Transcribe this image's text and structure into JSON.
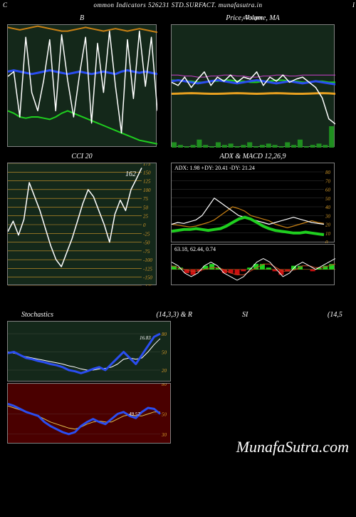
{
  "header": {
    "left": "C",
    "center": "ommon  Indicators 526231 STD.SURFACT. munafasutra.in",
    "right": "I"
  },
  "watermark": "MunafaSutra.com",
  "panels": {
    "bollinger": {
      "title": "B",
      "bg": "#14281a",
      "grid_color": "#3a4a3a",
      "series": {
        "price": {
          "color": "#ffffff",
          "width": 1.5,
          "values": [
            58,
            62,
            25,
            90,
            45,
            30,
            55,
            88,
            30,
            92,
            55,
            25,
            60,
            90,
            20,
            85,
            45,
            95,
            50,
            12,
            88,
            40,
            95,
            50,
            90,
            30
          ]
        },
        "upper": {
          "color": "#1fcf1f",
          "width": 2,
          "values": [
            30,
            28,
            25,
            24,
            25,
            25,
            24,
            23,
            25,
            28,
            30,
            28,
            26,
            24,
            22,
            20,
            18,
            16,
            14,
            12,
            10,
            8,
            6,
            5,
            4,
            3
          ]
        },
        "mid": {
          "color": "#2a4df0",
          "width": 3,
          "values": [
            62,
            63,
            62,
            61,
            60,
            61,
            62,
            63,
            62,
            61,
            60,
            61,
            62,
            61,
            60,
            61,
            62,
            61,
            60,
            62,
            63,
            62,
            61,
            62,
            61,
            60
          ]
        },
        "lower": {
          "color": "#c88014",
          "width": 2,
          "values": [
            98,
            97,
            96,
            97,
            98,
            99,
            98,
            97,
            96,
            95,
            95,
            96,
            97,
            98,
            97,
            96,
            95,
            96,
            97,
            96,
            95,
            96,
            97,
            96,
            95,
            94
          ]
        }
      }
    },
    "price_ma": {
      "title": "Price,  Volume,  MA",
      "sub": "all super",
      "bg": "#14281a",
      "grid_color": "#3a4a3a",
      "series": {
        "orange": {
          "color": "#e8a020",
          "width": 3,
          "values": [
            34,
            34.2,
            34.4,
            34.6,
            34.4,
            34.2,
            34,
            34,
            34.2,
            34.4,
            34.6,
            34.4,
            34.2,
            34,
            34.2,
            34.4,
            34.6,
            34.4,
            34.2,
            34,
            34,
            34.2,
            34.4,
            34.6,
            34.4,
            34
          ]
        },
        "price": {
          "color": "#ffffff",
          "width": 1.5,
          "values": [
            45,
            42,
            50,
            40,
            48,
            55,
            42,
            50,
            46,
            52,
            45,
            50,
            48,
            55,
            42,
            50,
            46,
            52,
            45,
            48,
            50,
            45,
            40,
            30,
            10,
            5
          ]
        },
        "ma1": {
          "color": "#2a4df0",
          "width": 3,
          "values": [
            46,
            47,
            46,
            45,
            44,
            45,
            46,
            47,
            46,
            45,
            44,
            45,
            46,
            47,
            46,
            45,
            44,
            45,
            46,
            45,
            44,
            45,
            46,
            45,
            44,
            43
          ]
        },
        "ma2": {
          "color": "#cc40cc",
          "width": 1,
          "values": [
            52,
            52,
            51,
            51,
            50,
            50,
            51,
            51,
            52,
            52,
            51,
            51,
            50,
            50,
            51,
            51,
            52,
            52,
            51,
            51,
            52,
            52,
            52,
            52,
            52,
            52
          ]
        },
        "green": {
          "color": "#1dd31d",
          "width": 2,
          "values": [
            47,
            47,
            46,
            46,
            45,
            45,
            46,
            46,
            47,
            47,
            46,
            46,
            45,
            45,
            46,
            46,
            47,
            47,
            46,
            46,
            45,
            45,
            46,
            46,
            45,
            45
          ]
        }
      },
      "volume_bars": {
        "color": "#1f8f1f",
        "values": [
          2,
          1,
          0.5,
          1,
          3,
          1,
          0.5,
          2,
          1,
          1.5,
          0.5,
          1,
          2,
          0.5,
          1,
          1.5,
          1,
          0.5,
          2,
          1,
          3,
          0.5,
          1,
          1.5,
          1,
          8
        ]
      }
    },
    "cci": {
      "title": "CCI 20",
      "bg": "#14281a",
      "grid_color": "#d49a2a",
      "yrange": [
        -175,
        175
      ],
      "ystep": 25,
      "callout": "162",
      "series": {
        "cci": {
          "color": "#ffffff",
          "width": 1.5,
          "values": [
            -20,
            10,
            -30,
            15,
            120,
            80,
            40,
            -10,
            -60,
            -100,
            -120,
            -80,
            -40,
            10,
            60,
            100,
            80,
            40,
            0,
            -50,
            30,
            70,
            40,
            100,
            130,
            162
          ]
        }
      }
    },
    "adx": {
      "title": "ADX   & MACD 12,26,9",
      "bg": "#000000",
      "grid_color": "#3a3a3a",
      "text": "ADX: 1.98   +DY: 20.41 -DY: 21.24",
      "yrange": [
        0,
        80
      ],
      "ystep": 10,
      "series": {
        "plus": {
          "color": "#ffffff",
          "width": 1.2,
          "values": [
            20,
            22,
            21,
            23,
            25,
            30,
            40,
            50,
            45,
            40,
            35,
            30,
            28,
            26,
            24,
            22,
            20,
            22,
            24,
            26,
            28,
            26,
            24,
            22,
            21,
            20
          ]
        },
        "minus": {
          "color": "#c88014",
          "width": 1.2,
          "values": [
            20,
            19,
            18,
            17,
            18,
            20,
            22,
            25,
            30,
            35,
            40,
            38,
            35,
            30,
            28,
            26,
            24,
            20,
            18,
            16,
            18,
            20,
            22,
            24,
            22,
            21
          ]
        },
        "adx": {
          "color": "#1fcf1f",
          "width": 4,
          "values": [
            12,
            13,
            14,
            14,
            15,
            14,
            13,
            14,
            15,
            18,
            22,
            26,
            28,
            26,
            22,
            18,
            15,
            13,
            12,
            11,
            10,
            10,
            11,
            10,
            9,
            8
          ]
        }
      }
    },
    "macd": {
      "bg": "#000000",
      "text": "63.18,  62.44,  0.74",
      "series": {
        "macd": {
          "color": "#ffffff",
          "width": 1,
          "values": [
            2,
            1,
            -1,
            -2,
            -1,
            1,
            2,
            1,
            -1,
            -2,
            -3,
            -2,
            0,
            2,
            3,
            2,
            0,
            -2,
            -1,
            1,
            2,
            1,
            0,
            1,
            2,
            3
          ]
        },
        "signal": {
          "color": "#c84020",
          "width": 1,
          "values": [
            1,
            0.5,
            0,
            -0.5,
            -0.5,
            0,
            0.5,
            0.5,
            0,
            -1,
            -1.5,
            -1.5,
            -0.5,
            0.5,
            1.5,
            1.5,
            0.5,
            -0.5,
            -0.5,
            0,
            1,
            1,
            0.5,
            0.5,
            1,
            1.5
          ]
        }
      },
      "hist": {
        "pos": "#1dd31d",
        "neg": "#cc1010",
        "values": [
          1,
          0.5,
          -1,
          -1.5,
          -0.5,
          1,
          1.5,
          0.5,
          -1,
          -1,
          -1.5,
          -0.5,
          0.5,
          1.5,
          1.5,
          0.5,
          -0.5,
          -1.5,
          -0.5,
          1,
          1,
          0,
          -0.5,
          0.5,
          1,
          1.5
        ]
      }
    },
    "stoch": {
      "title_left": "Stochastics",
      "title_right": "(14,3,3) & R",
      "bg": "#14281a",
      "grid_color": "#3a4a3a",
      "yrange": [
        0,
        100
      ],
      "yticks": [
        20,
        50,
        80
      ],
      "callout": "16.83",
      "series": {
        "k": {
          "color": "#2a4df0",
          "width": 3,
          "values": [
            48,
            50,
            45,
            40,
            38,
            35,
            33,
            30,
            28,
            25,
            20,
            18,
            15,
            18,
            22,
            25,
            20,
            30,
            40,
            50,
            40,
            30,
            45,
            60,
            75,
            80
          ]
        },
        "d": {
          "color": "#ffffff",
          "width": 1,
          "values": [
            50,
            48,
            45,
            42,
            40,
            38,
            36,
            34,
            32,
            30,
            27,
            25,
            22,
            20,
            20,
            22,
            23,
            25,
            30,
            38,
            40,
            38,
            40,
            50,
            62,
            72
          ]
        }
      }
    },
    "rsi": {
      "title_left": "SI",
      "title_right": "(14,5",
      "bg": "#4a0000",
      "grid_color": "#5a2a2a",
      "yrange": [
        20,
        80
      ],
      "yticks": [
        30,
        50,
        80
      ],
      "callout": "49.57",
      "series": {
        "rsi": {
          "color": "#2a4df0",
          "width": 3,
          "values": [
            60,
            58,
            55,
            52,
            50,
            48,
            42,
            38,
            35,
            32,
            30,
            32,
            38,
            42,
            45,
            42,
            40,
            45,
            50,
            52,
            48,
            46,
            52,
            56,
            55,
            50
          ]
        },
        "sig": {
          "color": "#e0c050",
          "width": 1,
          "values": [
            58,
            56,
            54,
            52,
            50,
            48,
            45,
            42,
            40,
            38,
            36,
            35,
            37,
            40,
            42,
            43,
            42,
            42,
            45,
            48,
            49,
            48,
            48,
            50,
            52,
            52
          ]
        }
      }
    }
  }
}
